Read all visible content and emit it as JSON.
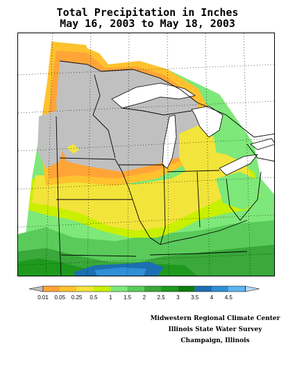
{
  "title": {
    "line1": "Total Precipitation in Inches",
    "line2": "May 16, 2003 to May 18, 2003"
  },
  "legend": {
    "bins": [
      {
        "label": "0.01",
        "color": "#ffa538"
      },
      {
        "label": "0.05",
        "color": "#ffc22e"
      },
      {
        "label": "0.25",
        "color": "#f2e43a"
      },
      {
        "label": "0.5",
        "color": "#c8f000"
      },
      {
        "label": "1",
        "color": "#7ee87a"
      },
      {
        "label": "1.5",
        "color": "#5acb5a"
      },
      {
        "label": "2",
        "color": "#3aa83a"
      },
      {
        "label": "2.5",
        "color": "#1d9a1d"
      },
      {
        "label": "3",
        "color": "#0f7d0f"
      },
      {
        "label": "3.5",
        "color": "#1c6fb0"
      },
      {
        "label": "4",
        "color": "#2e8fd6"
      },
      {
        "label": "4.5",
        "color": "#5fb4f0"
      }
    ],
    "low_color": "#c0c0c0",
    "high_color": "#b6d8f5"
  },
  "credits": {
    "line1": "Midwestern Regional Climate Center",
    "line2": "Illinois State Water Survey",
    "line3": "Champaign, Illinois"
  },
  "map_colors": {
    "no_rain": "#c0c0c0",
    "lake": "#ffffff"
  }
}
